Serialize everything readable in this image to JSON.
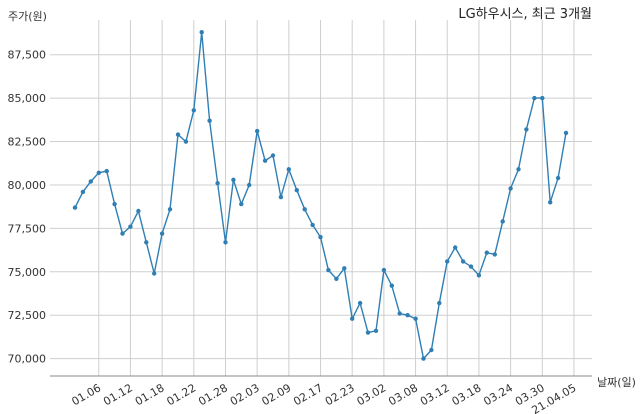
{
  "chart_data": {
    "type": "line",
    "title": "LG하우시스, 최근 3개월",
    "xlabel": "날짜(일)",
    "ylabel": "주가(원)",
    "ylim": [
      69000,
      89500
    ],
    "yticks": [
      "70,000",
      "72,500",
      "75,000",
      "77,500",
      "80,000",
      "82,500",
      "85,000",
      "87,500"
    ],
    "ytick_values": [
      70000,
      72500,
      75000,
      77500,
      80000,
      82500,
      85000,
      87500
    ],
    "xticks": [
      "01.06",
      "01.12",
      "01.18",
      "01.22",
      "01.28",
      "02.03",
      "02.09",
      "02.17",
      "02.23",
      "03.02",
      "03.08",
      "03.12",
      "03.18",
      "03.24",
      "03.30",
      "21.04.05"
    ],
    "xtick_positions": [
      3,
      7,
      11,
      15,
      19,
      23,
      27,
      31,
      35,
      39,
      43,
      47,
      51,
      55,
      59,
      63
    ],
    "grid": true,
    "line_color": "#2f7fb4",
    "series": [
      {
        "values": [
          78700,
          79600,
          80200,
          80700,
          80800,
          78900,
          77200,
          77600,
          78500,
          76700,
          74900,
          77200,
          78600,
          82900,
          82500,
          84300,
          88800,
          83700,
          80100,
          76700,
          80300,
          78900,
          80000,
          83100,
          81400,
          81700,
          79300,
          80900,
          79700,
          78600,
          77700,
          77000,
          75100,
          74600,
          75200,
          72300,
          73200,
          71500,
          71600,
          75100,
          74200,
          72600,
          72500,
          72300,
          70000,
          70500,
          73200,
          75600,
          76400,
          75600,
          75300,
          74800,
          76100,
          76000,
          77900,
          79800,
          80900,
          83200,
          85000,
          85000,
          79000,
          80400,
          83000
        ]
      }
    ]
  }
}
